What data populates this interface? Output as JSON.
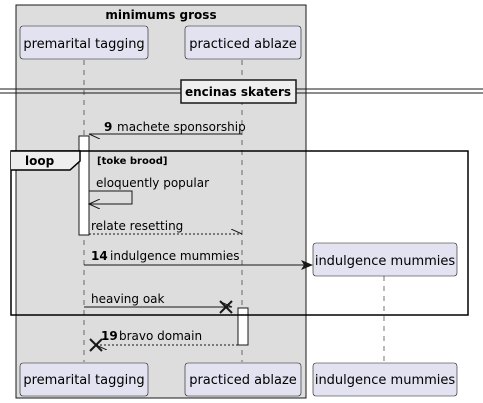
{
  "box": {
    "title": "minimums gross"
  },
  "participants": {
    "p1": "premarital tagging",
    "p2": "practiced ablaze",
    "p3": "indulgence mummies"
  },
  "divider": {
    "label": "encinas skaters"
  },
  "loop": {
    "keyword": "loop",
    "condition": "[toke brood]"
  },
  "messages": [
    {
      "number": "9",
      "text": "machete sponsorship"
    },
    {
      "number": "",
      "text": "eloquently popular"
    },
    {
      "number": "",
      "text": "relate resetting"
    },
    {
      "number": "14",
      "text": "indulgence mummies"
    },
    {
      "number": "",
      "text": "heaving oak"
    },
    {
      "number": "19",
      "text": "bravo domain"
    }
  ],
  "colors": {
    "box_fill": "#dddddd",
    "participant_fill": "#e2e2f0",
    "participant_stroke": "#181818",
    "line": "#181818"
  }
}
